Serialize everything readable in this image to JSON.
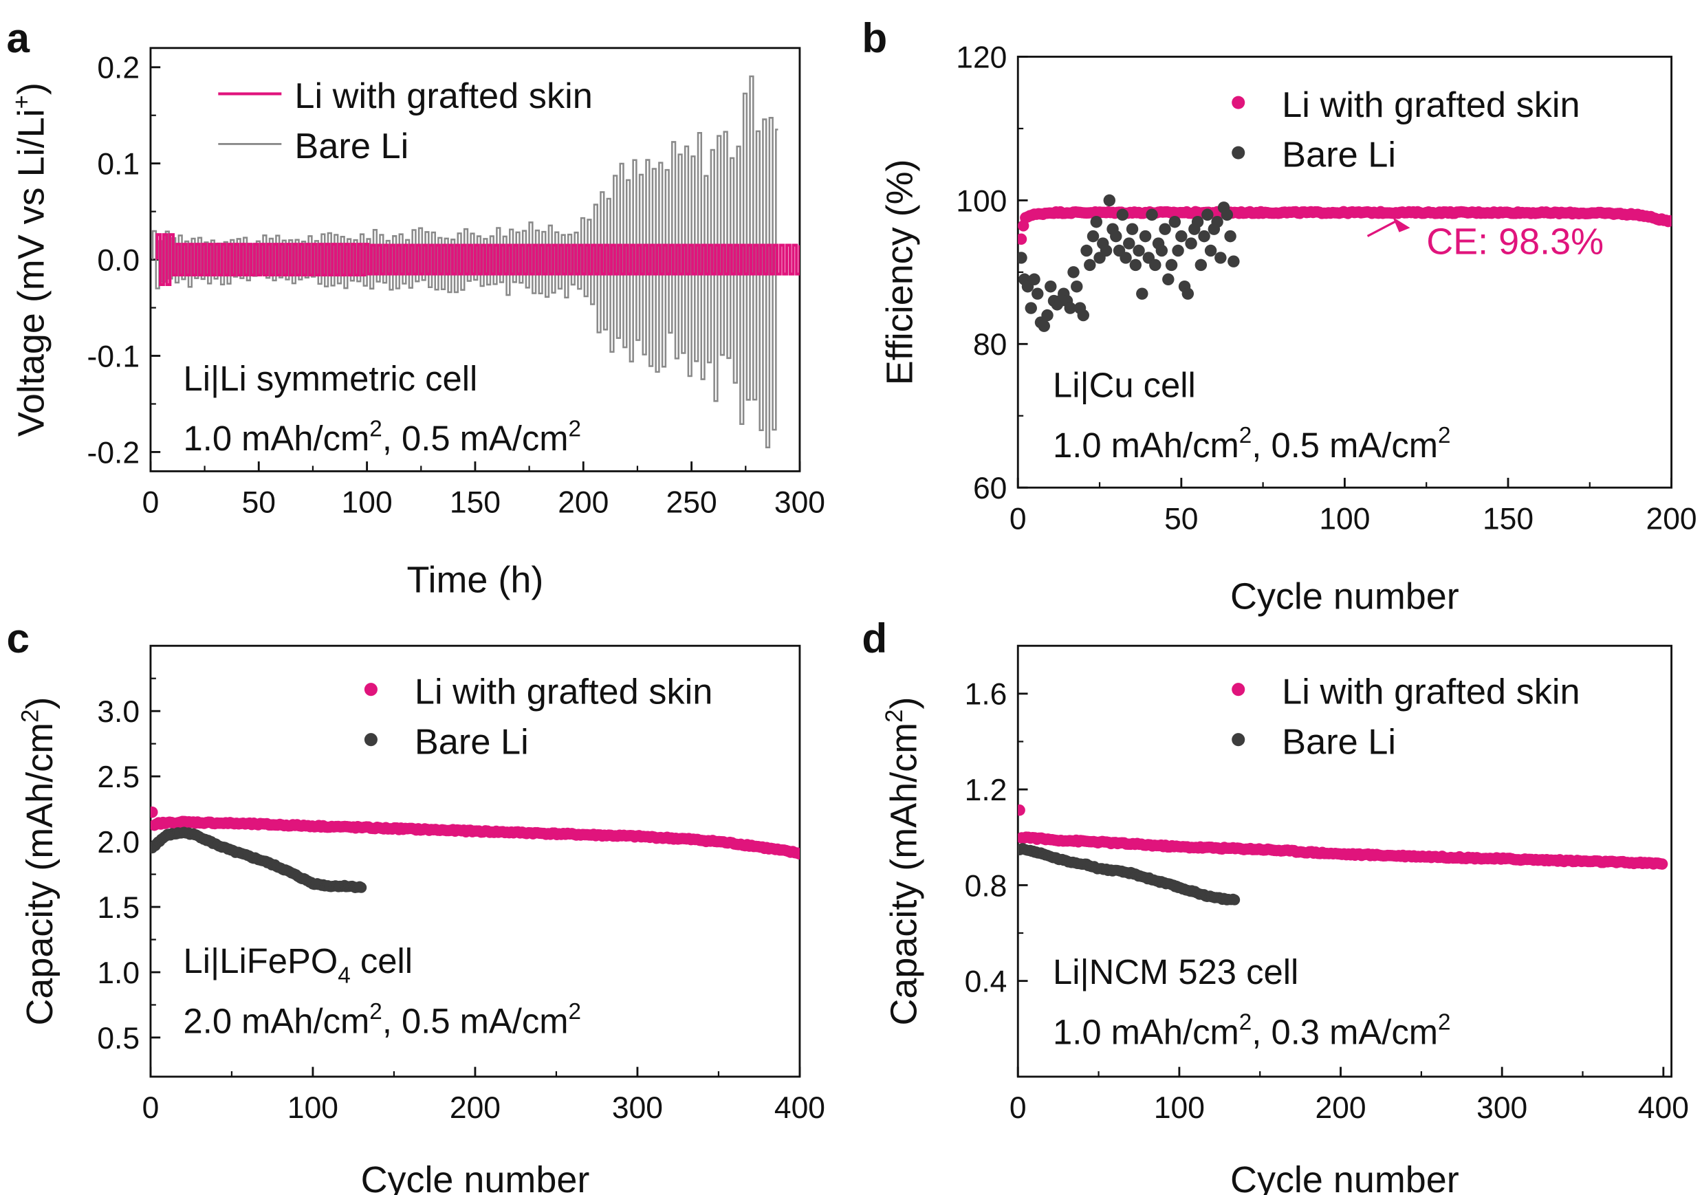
{
  "colors": {
    "pink": "#e0147c",
    "gray": "#8a8a8a",
    "dark": "#3d3d3d",
    "text": "#111111"
  },
  "chart_data": [
    {
      "panel": "a",
      "type": "line",
      "xlabel": "Time (h)",
      "ylabel_main": "Voltage (mV vs Li/Li",
      "ylabel_sup": "+",
      "ylabel_end": ")",
      "xlim": [
        0,
        300
      ],
      "ylim": [
        -0.22,
        0.22
      ],
      "xticks": [
        0,
        50,
        100,
        150,
        200,
        250,
        300
      ],
      "yticks": [
        -0.2,
        -0.1,
        0.0,
        0.1,
        0.2
      ],
      "ytick_labels": [
        "-0.2",
        "-0.1",
        "0.0",
        "0.1",
        "0.2"
      ],
      "legend": [
        "Li with grafted skin",
        "Bare Li"
      ],
      "legend_position": "top-left",
      "annotations": [
        {
          "pre": "Li|Li symmetric cell"
        },
        {
          "pre": "1.0 mAh/cm",
          "sup1": "2",
          "mid": ", 0.5 mA/cm",
          "sup2": "2"
        }
      ],
      "series": [
        {
          "name": "Li with grafted skin",
          "color": "#e0147c",
          "period_h": 3.0,
          "amplitude": {
            "from_h": 0,
            "values": [
              0.026,
              0.016,
              0.015
            ]
          }
        },
        {
          "name": "Bare Li",
          "color": "#8a8a8a",
          "period_h": 3.0,
          "amplitude": {
            "x": [
              0,
              50,
              100,
              150,
              200,
              210,
              240,
              270,
              285,
              290
            ],
            "y": [
              0.025,
              0.02,
              0.025,
              0.028,
              0.035,
              0.08,
              0.1,
              0.13,
              0.18,
              0.12
            ]
          }
        }
      ]
    },
    {
      "panel": "b",
      "type": "scatter",
      "xlabel": "Cycle number",
      "ylabel": "Efficiency (%)",
      "xlim": [
        0,
        200
      ],
      "ylim": [
        60,
        120
      ],
      "xticks": [
        0,
        50,
        100,
        150,
        200
      ],
      "yticks": [
        60,
        80,
        100,
        120
      ],
      "legend": [
        "Li with grafted skin",
        "Bare Li"
      ],
      "legend_position": "top-right",
      "callout": "CE: 98.3%",
      "annotations": [
        {
          "pre": "Li|Cu cell"
        },
        {
          "pre": "1.0 mAh/cm",
          "sup1": "2",
          "mid": ", 0.5 mA/cm",
          "sup2": "2"
        }
      ],
      "series": [
        {
          "name": "Li with grafted skin",
          "color": "#e0147c",
          "x": [
            1,
            2,
            3,
            5,
            10,
            20,
            50,
            100,
            150,
            180,
            190,
            195,
            200
          ],
          "y": [
            94.5,
            97.5,
            97.8,
            98.0,
            98.3,
            98.3,
            98.3,
            98.3,
            98.3,
            98.2,
            98.0,
            97.5,
            97.0
          ]
        },
        {
          "name": "Bare Li",
          "color": "#3d3d3d",
          "x": [
            1,
            2,
            3,
            4,
            5,
            6,
            7,
            8,
            9,
            10,
            11,
            12,
            13,
            14,
            15,
            16,
            17,
            18,
            19,
            20,
            21,
            22,
            23,
            24,
            25,
            26,
            27,
            28,
            29,
            30,
            31,
            32,
            33,
            34,
            35,
            36,
            37,
            38,
            39,
            40,
            41,
            42,
            43,
            44,
            45,
            46,
            47,
            48,
            49,
            50,
            51,
            52,
            53,
            54,
            55,
            56,
            57,
            58,
            59,
            60,
            61,
            62,
            63,
            64,
            65,
            66
          ],
          "y": [
            92,
            89,
            88,
            85,
            89,
            87,
            83,
            82.5,
            84,
            88,
            86,
            85.5,
            86,
            87,
            86,
            85,
            90,
            88,
            85,
            84,
            93,
            91,
            95,
            97,
            92,
            94,
            93,
            100,
            96,
            95,
            93,
            98,
            92,
            94,
            96,
            91,
            93,
            87,
            95,
            92,
            98,
            91,
            94,
            93,
            96,
            89,
            91,
            97,
            93,
            95,
            88,
            87,
            94,
            96,
            97,
            91,
            95,
            98,
            93,
            96,
            97,
            92,
            99,
            98,
            95,
            91.5
          ]
        }
      ]
    },
    {
      "panel": "c",
      "type": "scatter",
      "xlabel": "Cycle number",
      "ylabel_main": "Capacity (mAh/cm",
      "ylabel_sup": "2",
      "ylabel_end": ")",
      "xlim": [
        0,
        400
      ],
      "ylim": [
        0.2,
        3.5
      ],
      "xticks": [
        0,
        100,
        200,
        300,
        400
      ],
      "yticks": [
        0.5,
        1.0,
        1.5,
        2.0,
        2.5,
        3.0
      ],
      "ytick_labels": [
        "0.5",
        "1.0",
        "1.5",
        "2.0",
        "2.5",
        "3.0"
      ],
      "legend": [
        "Li with grafted skin",
        "Bare Li"
      ],
      "legend_position": "top-right",
      "annotations": [
        {
          "pre": "Li|LiFePO",
          "sub": "4",
          "post": " cell"
        },
        {
          "pre": "2.0 mAh/cm",
          "sup1": "2",
          "mid": ", 0.5 mA/cm",
          "sup2": "2"
        }
      ],
      "series": [
        {
          "name": "Li with grafted skin",
          "color": "#e0147c",
          "x": [
            1,
            2,
            5,
            20,
            50,
            100,
            150,
            200,
            250,
            300,
            330,
            350,
            370,
            390,
            400
          ],
          "y": [
            2.22,
            2.12,
            2.14,
            2.15,
            2.14,
            2.12,
            2.1,
            2.08,
            2.06,
            2.04,
            2.02,
            2.0,
            1.97,
            1.93,
            1.91
          ]
        },
        {
          "name": "Bare Li",
          "color": "#3d3d3d",
          "x": [
            1,
            5,
            10,
            15,
            20,
            25,
            30,
            40,
            50,
            60,
            70,
            80,
            90,
            100,
            110,
            120,
            130
          ],
          "y": [
            1.95,
            2.0,
            2.05,
            2.06,
            2.07,
            2.06,
            2.04,
            1.98,
            1.93,
            1.89,
            1.85,
            1.8,
            1.74,
            1.68,
            1.66,
            1.66,
            1.65
          ]
        }
      ]
    },
    {
      "panel": "d",
      "type": "scatter",
      "xlabel": "Cycle number",
      "ylabel_main": "Capacity (mAh/cm",
      "ylabel_sup": "2",
      "ylabel_end": ")",
      "xlim": [
        0,
        405
      ],
      "ylim": [
        0,
        1.8
      ],
      "xticks": [
        0,
        100,
        200,
        300,
        400
      ],
      "yticks": [
        0.4,
        0.8,
        1.2,
        1.6
      ],
      "ytick_labels": [
        "0.4",
        "0.8",
        "1.2",
        "1.6"
      ],
      "legend": [
        "Li with grafted skin",
        "Bare Li"
      ],
      "legend_position": "top-right",
      "annotations": [
        {
          "pre": "Li|NCM 523 cell"
        },
        {
          "pre": "1.0 mAh/cm",
          "sup1": "2",
          "mid": ", 0.3 mA/cm",
          "sup2": "2"
        }
      ],
      "series": [
        {
          "name": "Li with grafted skin",
          "color": "#e0147c",
          "x": [
            1,
            2,
            5,
            20,
            50,
            100,
            150,
            200,
            250,
            300,
            350,
            400
          ],
          "y": [
            1.11,
            1.0,
            1.0,
            0.99,
            0.98,
            0.96,
            0.95,
            0.93,
            0.92,
            0.91,
            0.9,
            0.89
          ]
        },
        {
          "name": "Bare Li",
          "color": "#3d3d3d",
          "x": [
            1,
            5,
            10,
            20,
            30,
            40,
            50,
            60,
            70,
            80,
            90,
            100,
            110,
            120,
            130,
            135
          ],
          "y": [
            0.95,
            0.95,
            0.94,
            0.92,
            0.9,
            0.89,
            0.87,
            0.86,
            0.85,
            0.83,
            0.81,
            0.79,
            0.77,
            0.75,
            0.74,
            0.74
          ]
        }
      ]
    }
  ]
}
